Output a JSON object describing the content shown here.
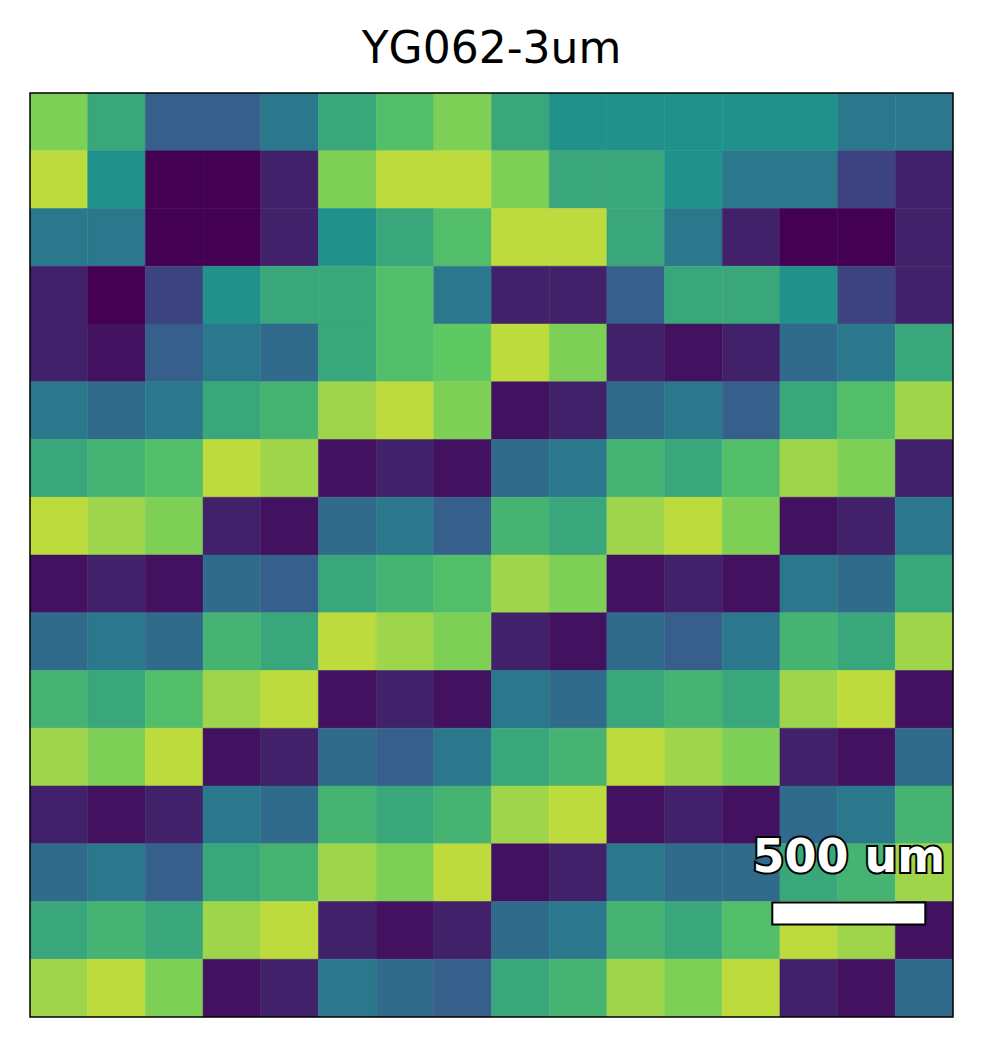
{
  "chart_data": {
    "type": "heatmap",
    "title": "YG062-3um",
    "tick_labels": false,
    "xlim": [
      0,
      3016
    ],
    "ylim": [
      0,
      3016
    ],
    "zlim": [
      0,
      1
    ],
    "scale_bar": {
      "value": 500,
      "label": "500 um"
    },
    "cells": [
      [
        0.8,
        0.6,
        0.3,
        0.3,
        0.4,
        0.6,
        0.7,
        0.8,
        0.6,
        0.5,
        0.5,
        0.5,
        0.5,
        0.5,
        0.4,
        0.4
      ],
      [
        0.9,
        0.5,
        0.0,
        0.0,
        0.1,
        0.8,
        0.9,
        0.9,
        0.8,
        0.6,
        0.6,
        0.5,
        0.4,
        0.4,
        0.2,
        0.1
      ],
      [
        0.4,
        0.4,
        0.0,
        0.0,
        0.1,
        0.5,
        0.6,
        0.7,
        0.9,
        0.9,
        0.6,
        0.4,
        0.1,
        0.0,
        0.0,
        0.1
      ],
      [
        0.1,
        0.0,
        0.2,
        0.5,
        0.6,
        0.6,
        0.7,
        0.4,
        0.1,
        0.1,
        0.3,
        0.6,
        0.6,
        0.5,
        0.2,
        0.1
      ],
      [
        0.1,
        0.05,
        0.3,
        0.4,
        0.35,
        0.6,
        0.7,
        0.75,
        0.9,
        0.8,
        0.1,
        0.05,
        0.1,
        0.35,
        0.4,
        0.6
      ],
      [
        0.4,
        0.35,
        0.4,
        0.6,
        0.65,
        0.85,
        0.9,
        0.8,
        0.05,
        0.1,
        0.35,
        0.4,
        0.3,
        0.6,
        0.7,
        0.85
      ],
      [
        0.6,
        0.65,
        0.7,
        0.9,
        0.85,
        0.05,
        0.1,
        0.05,
        0.35,
        0.4,
        0.65,
        0.6,
        0.7,
        0.85,
        0.8,
        0.1
      ],
      [
        0.9,
        0.85,
        0.8,
        0.1,
        0.05,
        0.35,
        0.4,
        0.3,
        0.65,
        0.6,
        0.85,
        0.9,
        0.8,
        0.05,
        0.1,
        0.4
      ],
      [
        0.05,
        0.1,
        0.05,
        0.35,
        0.3,
        0.6,
        0.65,
        0.7,
        0.85,
        0.8,
        0.05,
        0.1,
        0.05,
        0.4,
        0.35,
        0.6
      ],
      [
        0.35,
        0.4,
        0.35,
        0.65,
        0.6,
        0.9,
        0.85,
        0.8,
        0.1,
        0.05,
        0.35,
        0.3,
        0.4,
        0.65,
        0.6,
        0.85
      ],
      [
        0.65,
        0.6,
        0.7,
        0.85,
        0.9,
        0.05,
        0.1,
        0.05,
        0.4,
        0.35,
        0.6,
        0.65,
        0.6,
        0.85,
        0.9,
        0.05
      ],
      [
        0.85,
        0.8,
        0.9,
        0.05,
        0.1,
        0.35,
        0.3,
        0.4,
        0.6,
        0.65,
        0.9,
        0.85,
        0.8,
        0.1,
        0.05,
        0.35
      ],
      [
        0.1,
        0.05,
        0.1,
        0.4,
        0.35,
        0.65,
        0.6,
        0.65,
        0.85,
        0.9,
        0.05,
        0.1,
        0.05,
        0.35,
        0.4,
        0.65
      ],
      [
        0.35,
        0.4,
        0.3,
        0.6,
        0.65,
        0.85,
        0.8,
        0.9,
        0.05,
        0.1,
        0.4,
        0.35,
        0.35,
        0.6,
        0.65,
        0.85
      ],
      [
        0.6,
        0.65,
        0.6,
        0.85,
        0.9,
        0.1,
        0.05,
        0.1,
        0.35,
        0.4,
        0.65,
        0.6,
        0.7,
        0.9,
        0.85,
        0.05
      ],
      [
        0.85,
        0.9,
        0.8,
        0.05,
        0.1,
        0.4,
        0.35,
        0.3,
        0.6,
        0.65,
        0.85,
        0.8,
        0.9,
        0.1,
        0.05,
        0.35
      ]
    ]
  }
}
